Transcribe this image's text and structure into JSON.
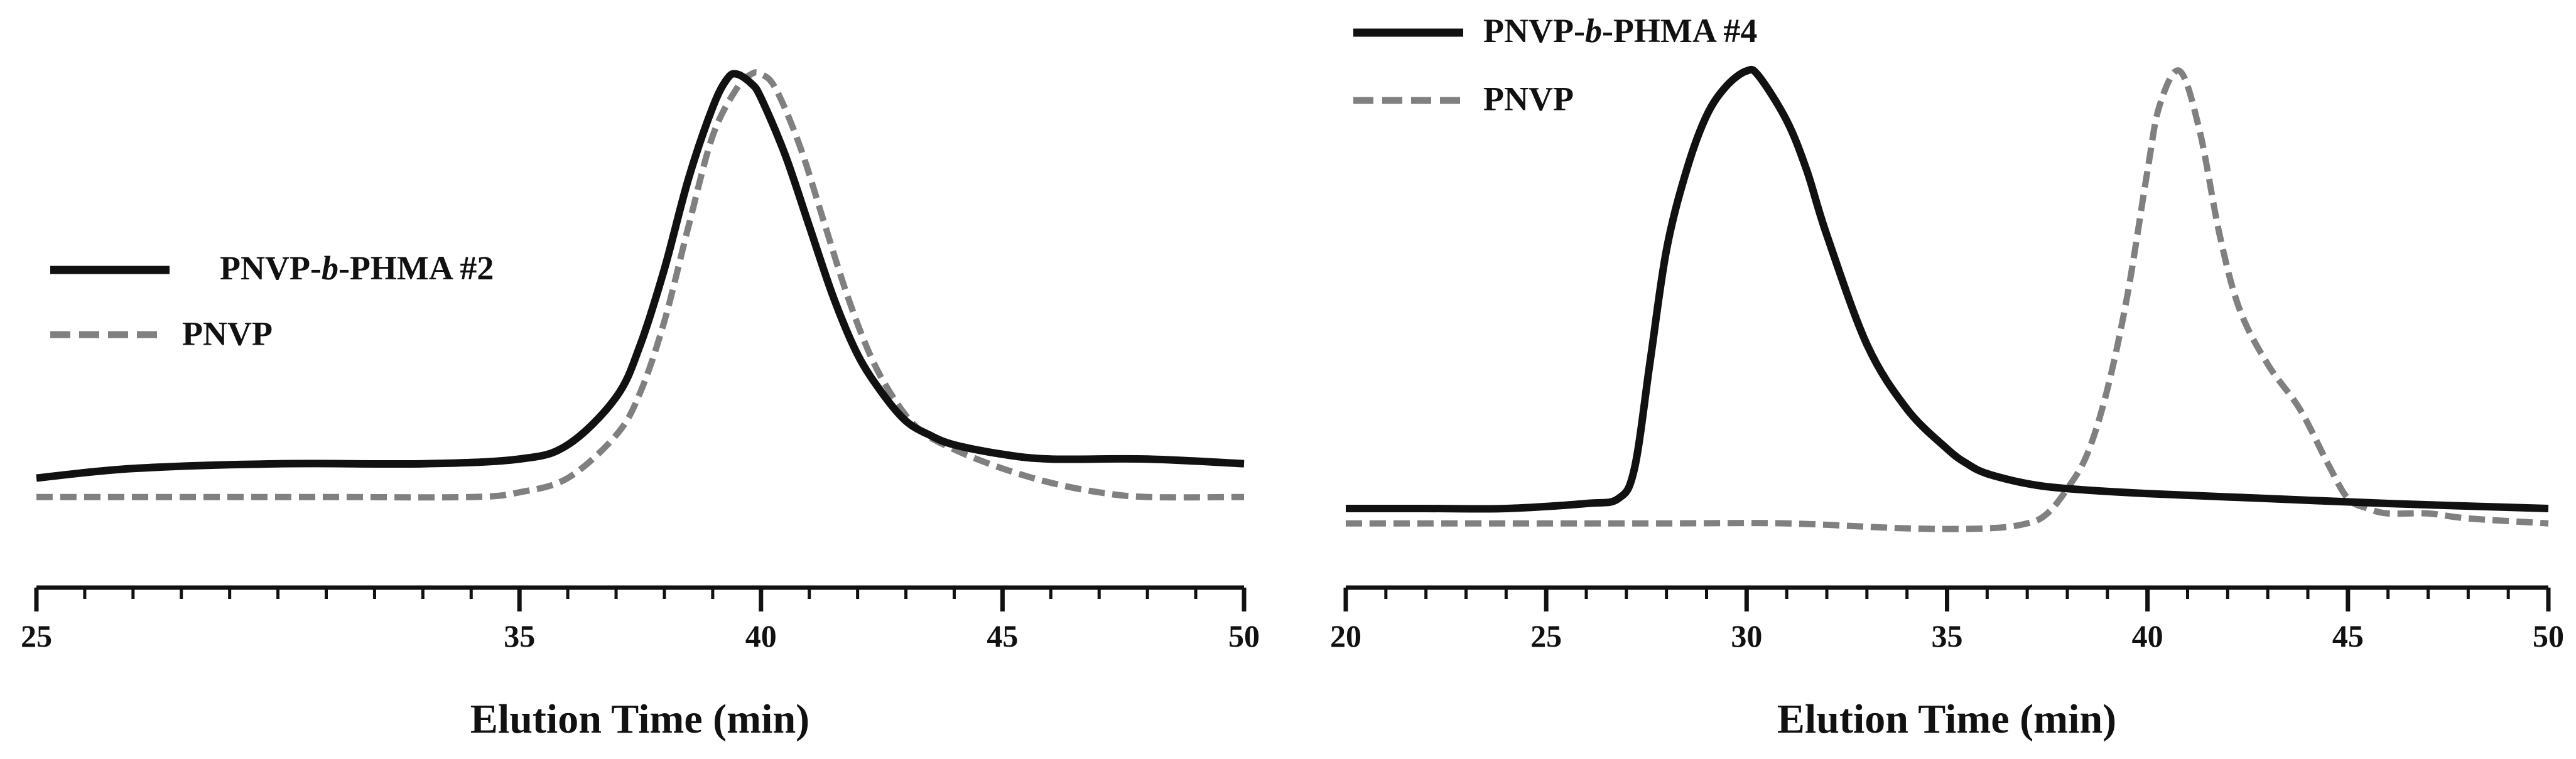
{
  "chart_data": [
    {
      "type": "line",
      "title": "",
      "xlabel": "Elution Time (min)",
      "ylabel": "",
      "xlim": [
        25,
        50
      ],
      "ylim": [
        0,
        1
      ],
      "xticks": [
        25,
        35,
        40,
        45,
        50
      ],
      "xticks_minor_step": 1,
      "grid": false,
      "legend_position": "left",
      "series": [
        {
          "name": "PNVP-b-PHMA #2",
          "color": "#111111",
          "style": "solid",
          "x": [
            25,
            27,
            30,
            33,
            35,
            36,
            37,
            37.5,
            38,
            38.5,
            39,
            39.3,
            39.5,
            39.8,
            40,
            40.5,
            41,
            41.5,
            42,
            42.5,
            43,
            43.5,
            44,
            45,
            46,
            48,
            50
          ],
          "y": [
            0.15,
            0.17,
            0.18,
            0.18,
            0.19,
            0.22,
            0.32,
            0.43,
            0.59,
            0.78,
            0.93,
            0.99,
            1.0,
            0.98,
            0.95,
            0.83,
            0.68,
            0.53,
            0.41,
            0.33,
            0.27,
            0.24,
            0.22,
            0.2,
            0.19,
            0.19,
            0.18
          ]
        },
        {
          "name": "PNVP",
          "color": "#808080",
          "style": "dashed",
          "x": [
            25,
            28,
            31,
            34,
            35,
            36,
            37,
            37.5,
            38,
            38.5,
            39,
            39.5,
            39.8,
            40,
            40.3,
            40.8,
            41.3,
            41.8,
            42.3,
            42.8,
            43.3,
            44,
            45,
            46,
            47,
            48,
            50
          ],
          "y": [
            0.11,
            0.11,
            0.11,
            0.11,
            0.12,
            0.15,
            0.24,
            0.33,
            0.48,
            0.68,
            0.87,
            0.97,
            1.0,
            1.0,
            0.97,
            0.85,
            0.69,
            0.53,
            0.4,
            0.31,
            0.25,
            0.21,
            0.17,
            0.14,
            0.12,
            0.11,
            0.11
          ]
        }
      ]
    },
    {
      "type": "line",
      "title": "",
      "xlabel": "Elution Time (min)",
      "ylabel": "",
      "xlim": [
        20,
        50
      ],
      "ylim": [
        0,
        1
      ],
      "xticks": [
        20,
        25,
        30,
        35,
        40,
        45,
        50
      ],
      "xticks_minor_step": 1,
      "grid": false,
      "legend_position": "top-left",
      "series": [
        {
          "name": "PNVP-b-PHMA #4",
          "color": "#111111",
          "style": "solid",
          "x": [
            20,
            22,
            24,
            26,
            26.8,
            27.2,
            27.6,
            28,
            28.5,
            29,
            29.5,
            30,
            30.3,
            31,
            31.5,
            32,
            33,
            34,
            35,
            35.5,
            36,
            37,
            38,
            40,
            43,
            46,
            50
          ],
          "y": [
            0.12,
            0.12,
            0.12,
            0.13,
            0.14,
            0.2,
            0.42,
            0.64,
            0.8,
            0.91,
            0.97,
            1.0,
            0.99,
            0.9,
            0.8,
            0.67,
            0.45,
            0.32,
            0.24,
            0.21,
            0.19,
            0.17,
            0.16,
            0.15,
            0.14,
            0.13,
            0.12
          ]
        },
        {
          "name": "PNVP",
          "color": "#808080",
          "style": "dashed",
          "x": [
            20,
            24,
            28,
            31,
            34,
            36,
            37,
            37.5,
            38,
            38.5,
            39,
            39.5,
            40,
            40.3,
            40.8,
            41.3,
            41.8,
            42.3,
            43,
            43.8,
            44.5,
            45,
            45.5,
            46,
            47,
            48,
            50
          ],
          "y": [
            0.09,
            0.09,
            0.09,
            0.09,
            0.08,
            0.08,
            0.09,
            0.11,
            0.16,
            0.23,
            0.36,
            0.55,
            0.8,
            0.93,
            1.0,
            0.88,
            0.67,
            0.52,
            0.41,
            0.32,
            0.21,
            0.14,
            0.12,
            0.11,
            0.11,
            0.1,
            0.09
          ]
        }
      ]
    }
  ]
}
